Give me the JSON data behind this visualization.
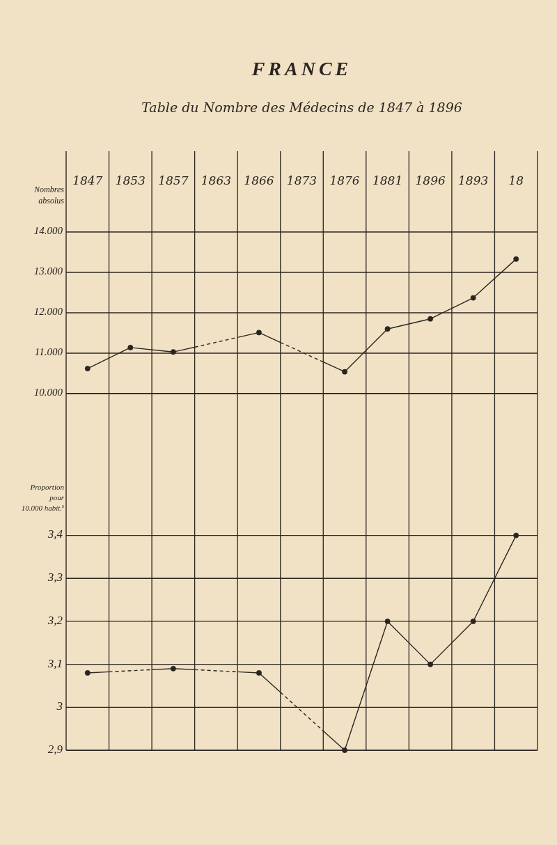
{
  "chart_data": [
    {
      "type": "line",
      "title": "FRANCE",
      "subtitle": "Table du Nombre des Médecins de 1847 à 1896",
      "ylabel": "Nombres absolus",
      "categories": [
        "1847",
        "1853",
        "1857",
        "1863",
        "1866",
        "1873",
        "1876",
        "1881",
        "1896",
        "1893",
        "18"
      ],
      "series": [
        {
          "color": "#2b2520",
          "values": [
            10620,
            11140,
            11030,
            null,
            11510,
            null,
            10540,
            11600,
            11850,
            12370,
            13330
          ],
          "line_style": "dashed"
        }
      ],
      "ylim": [
        10000,
        16000
      ],
      "yticks": [
        {
          "value": 10000,
          "label": "10.000"
        },
        {
          "value": 11000,
          "label": "11.000"
        },
        {
          "value": 12000,
          "label": "12.000"
        },
        {
          "value": 13000,
          "label": "13.000"
        },
        {
          "value": 14000,
          "label": "14.000"
        }
      ],
      "grid": true,
      "marker": "circle"
    },
    {
      "type": "line",
      "ylabel": "Proportion pour 10.000 habit.$^{s}$",
      "categories": [
        null,
        null,
        null,
        null,
        null,
        null,
        null,
        null,
        null,
        null,
        null
      ],
      "series": [
        {
          "color": "#2b2520",
          "values": [
            3.08,
            null,
            3.09,
            null,
            3.08,
            null,
            2.9,
            3.2,
            3.1,
            3.2,
            3.4
          ],
          "line_style": "dashed"
        }
      ],
      "ylim": [
        2.9,
        3.73
      ],
      "yticks": [
        {
          "value": 2.9,
          "label": "2,9"
        },
        {
          "value": 3,
          "label": "3"
        },
        {
          "value": 3.1,
          "label": "3,1"
        },
        {
          "value": 3.2,
          "label": "3,2"
        },
        {
          "value": 3.3,
          "label": "3,3"
        },
        {
          "value": 3.4,
          "label": "3,4"
        }
      ],
      "grid": true,
      "marker": "circle"
    }
  ]
}
